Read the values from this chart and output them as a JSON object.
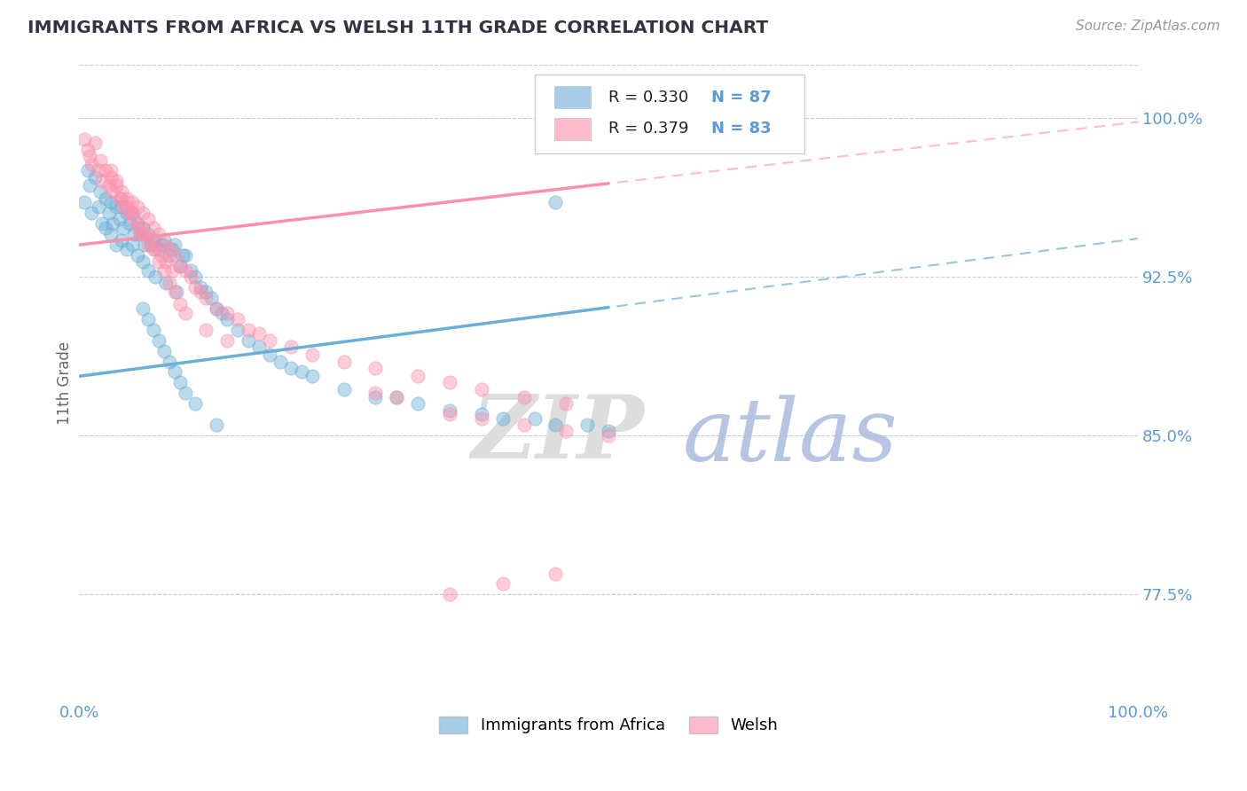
{
  "title": "IMMIGRANTS FROM AFRICA VS WELSH 11TH GRADE CORRELATION CHART",
  "source_text": "Source: ZipAtlas.com",
  "ylabel": "11th Grade",
  "watermark_zip": "ZIP",
  "watermark_atlas": "atlas",
  "xlim": [
    0.0,
    1.0
  ],
  "ylim": [
    0.725,
    1.025
  ],
  "yticks": [
    0.775,
    0.85,
    0.925,
    1.0
  ],
  "ytick_labels": [
    "77.5%",
    "85.0%",
    "92.5%",
    "100.0%"
  ],
  "xtick_labels": [
    "0.0%",
    "100.0%"
  ],
  "xticks": [
    0.0,
    1.0
  ],
  "legend_r1": "R = 0.330",
  "legend_n1": "N = 87",
  "legend_r2": "R = 0.379",
  "legend_n2": "N = 83",
  "blue_color": "#6BAED6",
  "pink_color": "#FC8FAB",
  "title_color": "#333344",
  "axis_label_color": "#5B9BD5",
  "grid_color": "#BBBBCC",
  "wm_zip_color": "#DDDDDD",
  "wm_atlas_color": "#AABBDD",
  "blue_R": 0.33,
  "pink_R": 0.379,
  "blue_intercept": 0.878,
  "blue_slope": 0.065,
  "pink_intercept": 0.94,
  "pink_slope": 0.058,
  "blue_scatter_x": [
    0.005,
    0.008,
    0.01,
    0.012,
    0.015,
    0.018,
    0.02,
    0.022,
    0.025,
    0.025,
    0.028,
    0.03,
    0.03,
    0.032,
    0.035,
    0.035,
    0.038,
    0.04,
    0.04,
    0.042,
    0.045,
    0.045,
    0.048,
    0.05,
    0.05,
    0.052,
    0.055,
    0.055,
    0.058,
    0.06,
    0.06,
    0.062,
    0.065,
    0.065,
    0.068,
    0.07,
    0.072,
    0.075,
    0.078,
    0.08,
    0.082,
    0.085,
    0.088,
    0.09,
    0.092,
    0.095,
    0.098,
    0.1,
    0.105,
    0.11,
    0.115,
    0.12,
    0.125,
    0.13,
    0.135,
    0.14,
    0.15,
    0.16,
    0.17,
    0.18,
    0.19,
    0.2,
    0.21,
    0.22,
    0.25,
    0.28,
    0.3,
    0.32,
    0.35,
    0.38,
    0.4,
    0.43,
    0.45,
    0.48,
    0.5,
    0.06,
    0.065,
    0.07,
    0.075,
    0.08,
    0.085,
    0.09,
    0.095,
    0.1,
    0.11,
    0.13,
    0.45
  ],
  "blue_scatter_y": [
    0.96,
    0.975,
    0.968,
    0.955,
    0.972,
    0.958,
    0.965,
    0.95,
    0.962,
    0.948,
    0.955,
    0.96,
    0.945,
    0.95,
    0.958,
    0.94,
    0.952,
    0.958,
    0.942,
    0.948,
    0.955,
    0.938,
    0.95,
    0.955,
    0.94,
    0.945,
    0.95,
    0.935,
    0.945,
    0.948,
    0.932,
    0.94,
    0.945,
    0.928,
    0.94,
    0.942,
    0.925,
    0.938,
    0.94,
    0.942,
    0.922,
    0.935,
    0.938,
    0.94,
    0.918,
    0.93,
    0.935,
    0.935,
    0.928,
    0.925,
    0.92,
    0.918,
    0.915,
    0.91,
    0.908,
    0.905,
    0.9,
    0.895,
    0.892,
    0.888,
    0.885,
    0.882,
    0.88,
    0.878,
    0.872,
    0.868,
    0.868,
    0.865,
    0.862,
    0.86,
    0.858,
    0.858,
    0.855,
    0.855,
    0.852,
    0.91,
    0.905,
    0.9,
    0.895,
    0.89,
    0.885,
    0.88,
    0.875,
    0.87,
    0.865,
    0.855,
    0.96
  ],
  "pink_scatter_x": [
    0.005,
    0.008,
    0.01,
    0.012,
    0.015,
    0.018,
    0.02,
    0.022,
    0.025,
    0.028,
    0.03,
    0.032,
    0.035,
    0.038,
    0.04,
    0.042,
    0.045,
    0.048,
    0.05,
    0.052,
    0.055,
    0.058,
    0.06,
    0.062,
    0.065,
    0.068,
    0.07,
    0.072,
    0.075,
    0.078,
    0.08,
    0.082,
    0.085,
    0.088,
    0.09,
    0.095,
    0.1,
    0.105,
    0.11,
    0.115,
    0.12,
    0.13,
    0.14,
    0.15,
    0.16,
    0.17,
    0.18,
    0.2,
    0.22,
    0.25,
    0.28,
    0.32,
    0.35,
    0.38,
    0.42,
    0.46,
    0.03,
    0.035,
    0.04,
    0.045,
    0.05,
    0.055,
    0.06,
    0.065,
    0.07,
    0.075,
    0.08,
    0.085,
    0.09,
    0.095,
    0.1,
    0.12,
    0.14,
    0.28,
    0.3,
    0.35,
    0.38,
    0.42,
    0.46,
    0.5,
    0.35,
    0.4,
    0.45
  ],
  "pink_scatter_y": [
    0.99,
    0.985,
    0.982,
    0.978,
    0.988,
    0.975,
    0.98,
    0.97,
    0.975,
    0.968,
    0.972,
    0.965,
    0.97,
    0.962,
    0.965,
    0.958,
    0.962,
    0.955,
    0.96,
    0.952,
    0.958,
    0.948,
    0.955,
    0.945,
    0.952,
    0.942,
    0.948,
    0.938,
    0.945,
    0.935,
    0.94,
    0.932,
    0.938,
    0.928,
    0.935,
    0.93,
    0.928,
    0.925,
    0.92,
    0.918,
    0.915,
    0.91,
    0.908,
    0.905,
    0.9,
    0.898,
    0.895,
    0.892,
    0.888,
    0.885,
    0.882,
    0.878,
    0.875,
    0.872,
    0.868,
    0.865,
    0.975,
    0.968,
    0.962,
    0.958,
    0.955,
    0.948,
    0.945,
    0.94,
    0.938,
    0.932,
    0.928,
    0.922,
    0.918,
    0.912,
    0.908,
    0.9,
    0.895,
    0.87,
    0.868,
    0.86,
    0.858,
    0.855,
    0.852,
    0.85,
    0.775,
    0.78,
    0.785
  ]
}
